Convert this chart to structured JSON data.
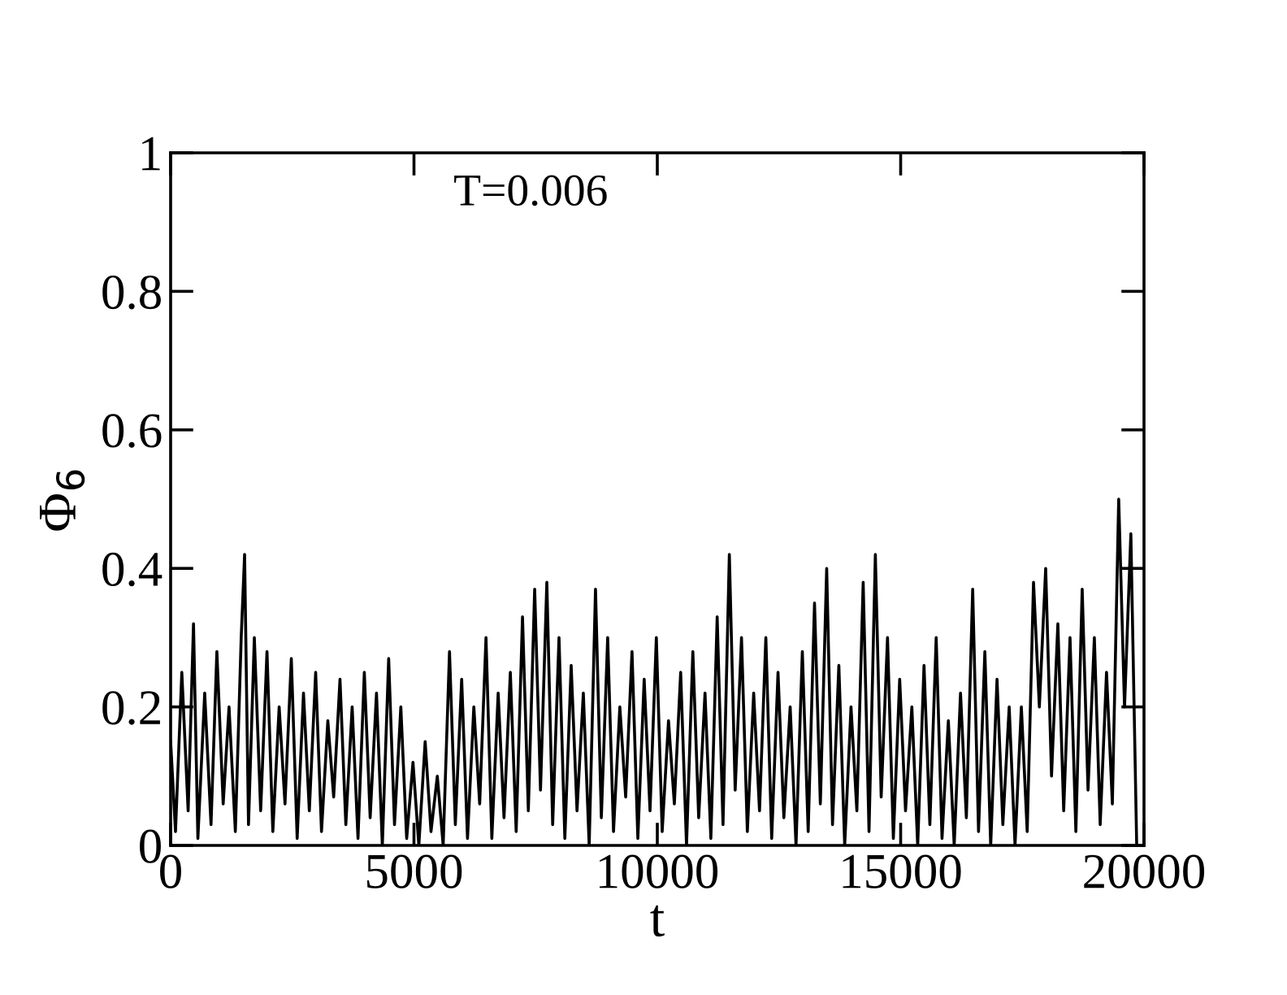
{
  "chart_data": {
    "type": "line",
    "xlabel": "t",
    "ylabel": "Φ$_{6}$",
    "annotations": [
      "T=0.006"
    ],
    "x": [
      0,
      100,
      230,
      360,
      470,
      560,
      700,
      830,
      950,
      1080,
      1200,
      1330,
      1450,
      1520,
      1600,
      1720,
      1850,
      1980,
      2100,
      2230,
      2350,
      2480,
      2600,
      2730,
      2850,
      2980,
      3100,
      3230,
      3350,
      3480,
      3600,
      3730,
      3850,
      3980,
      4100,
      4230,
      4350,
      4480,
      4600,
      4730,
      4850,
      4980,
      5100,
      5230,
      5350,
      5480,
      5600,
      5730,
      5850,
      5980,
      6100,
      6230,
      6350,
      6480,
      6600,
      6730,
      6850,
      6980,
      7100,
      7230,
      7350,
      7480,
      7600,
      7730,
      7850,
      7980,
      8100,
      8230,
      8350,
      8480,
      8600,
      8730,
      8850,
      8980,
      9100,
      9230,
      9350,
      9480,
      9600,
      9730,
      9850,
      9980,
      10100,
      10230,
      10350,
      10480,
      10600,
      10730,
      10850,
      10980,
      11100,
      11230,
      11350,
      11480,
      11600,
      11730,
      11850,
      11980,
      12100,
      12230,
      12350,
      12480,
      12600,
      12730,
      12850,
      12980,
      13100,
      13230,
      13350,
      13480,
      13600,
      13730,
      13850,
      13980,
      14100,
      14230,
      14350,
      14480,
      14600,
      14730,
      14850,
      14980,
      15100,
      15230,
      15350,
      15480,
      15600,
      15730,
      15850,
      15980,
      16100,
      16230,
      16350,
      16480,
      16600,
      16730,
      16850,
      16980,
      17100,
      17230,
      17350,
      17480,
      17600,
      17730,
      17850,
      17980,
      18100,
      18230,
      18350,
      18480,
      18600,
      18730,
      18850,
      18980,
      19100,
      19230,
      19350,
      19480,
      19600,
      19730,
      19850
    ],
    "values": [
      0.15,
      0.02,
      0.25,
      0.05,
      0.32,
      0.01,
      0.22,
      0.03,
      0.28,
      0.06,
      0.2,
      0.02,
      0.3,
      0.42,
      0.03,
      0.3,
      0.05,
      0.28,
      0.02,
      0.2,
      0.06,
      0.27,
      0.01,
      0.22,
      0.05,
      0.25,
      0.02,
      0.18,
      0.07,
      0.24,
      0.03,
      0.2,
      0.01,
      0.25,
      0.04,
      0.22,
      0.0,
      0.27,
      0.03,
      0.2,
      0.01,
      0.12,
      0.0,
      0.15,
      0.02,
      0.1,
      0.0,
      0.28,
      0.03,
      0.24,
      0.01,
      0.2,
      0.06,
      0.3,
      0.01,
      0.22,
      0.04,
      0.25,
      0.02,
      0.33,
      0.05,
      0.37,
      0.08,
      0.38,
      0.03,
      0.3,
      0.01,
      0.26,
      0.05,
      0.22,
      0.0,
      0.37,
      0.04,
      0.3,
      0.02,
      0.2,
      0.07,
      0.28,
      0.01,
      0.24,
      0.05,
      0.3,
      0.02,
      0.18,
      0.06,
      0.25,
      0.0,
      0.28,
      0.04,
      0.22,
      0.01,
      0.33,
      0.03,
      0.42,
      0.08,
      0.3,
      0.02,
      0.22,
      0.05,
      0.3,
      0.01,
      0.25,
      0.04,
      0.2,
      0.0,
      0.28,
      0.02,
      0.35,
      0.06,
      0.4,
      0.03,
      0.26,
      0.0,
      0.2,
      0.05,
      0.38,
      0.02,
      0.42,
      0.07,
      0.3,
      0.01,
      0.24,
      0.05,
      0.2,
      0.0,
      0.26,
      0.03,
      0.3,
      0.01,
      0.18,
      0.0,
      0.22,
      0.04,
      0.37,
      0.02,
      0.28,
      0.0,
      0.24,
      0.03,
      0.2,
      0.0,
      0.2,
      0.02,
      0.38,
      0.2,
      0.4,
      0.1,
      0.32,
      0.05,
      0.3,
      0.02,
      0.37,
      0.08,
      0.3,
      0.03,
      0.25,
      0.06,
      0.5,
      0.2,
      0.45,
      0.0
    ],
    "xlim": [
      0,
      20000
    ],
    "ylim": [
      0,
      1
    ],
    "xticks": [
      0,
      5000,
      10000,
      15000,
      20000
    ],
    "yticks": [
      0,
      0.2,
      0.4,
      0.6,
      0.8,
      1
    ],
    "color": "#000000",
    "grid": false,
    "legend": false,
    "marker": "none",
    "line_style": "solid"
  }
}
